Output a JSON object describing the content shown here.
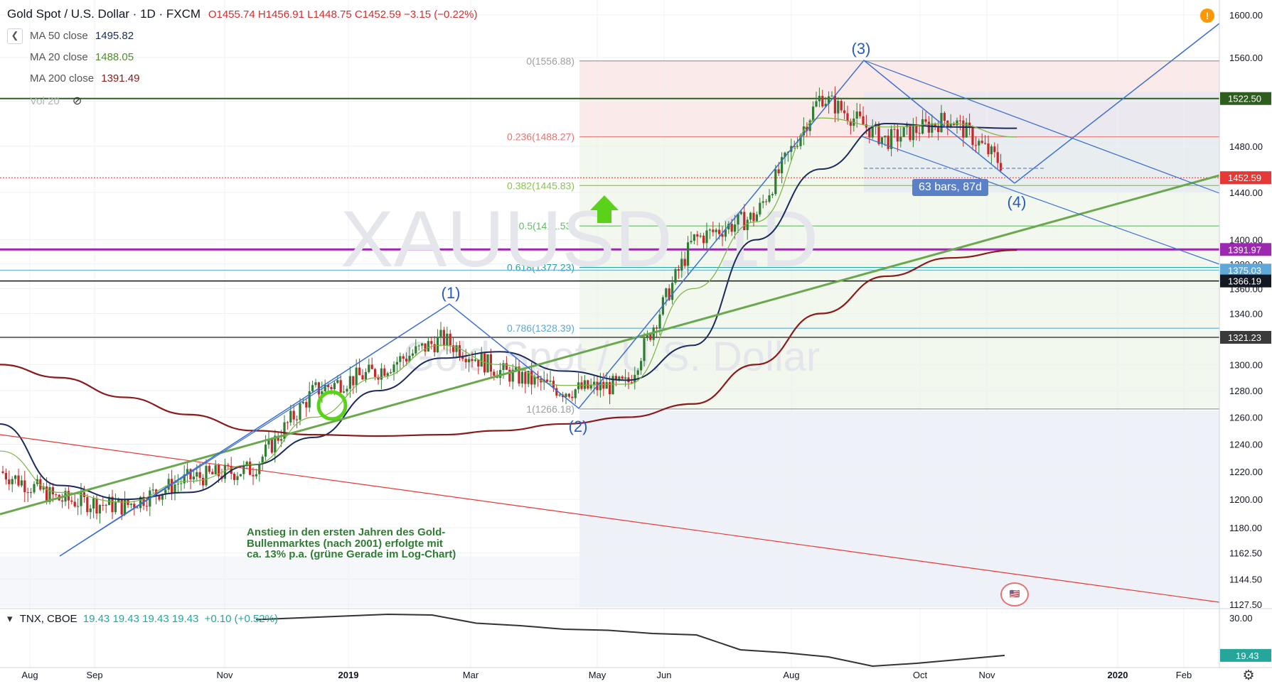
{
  "header": {
    "title": "Gold Spot / U.S. Dollar · 1D · FXCM",
    "open": "O1455.74",
    "high": "H1456.91",
    "low": "L1448.75",
    "close": "C1452.59",
    "change": "−3.15 (−0.22%)"
  },
  "legend": {
    "ma50_label": "MA 50 close",
    "ma50_value": "1495.82",
    "ma20_label": "MA 20 close",
    "ma20_value": "1488.05",
    "ma200_label": "MA 200 close",
    "ma200_value": "1391.49",
    "vol_label": "Vol 20"
  },
  "colors": {
    "ma50": "#1a2b5c",
    "ma20": "#7cb342",
    "ma200": "#8b1a1a",
    "up": "#2e7d32",
    "down": "#c62828",
    "trend_green": "#6aa84f",
    "channel_blue": "#3d6fd1",
    "fib_red": "#e57373",
    "purple": "#9c27b0"
  },
  "watermark": {
    "symbol": "XAUUSD, 1D",
    "name": "Gold Spot / U.S. Dollar"
  },
  "annotation_note": "Anstieg in den ersten Jahren des Gold-Bullenmarktes (nach 2001) erfolgte mit ca. 13% p.a. (grüne Gerade im Log-Chart)",
  "bars_badge": "63 bars, 87d",
  "icons": [
    "alert-icon",
    "settings-gear-icon",
    "flag-icon",
    "eye-hidden-icon",
    "collapse-icon"
  ],
  "tnx": {
    "label": "TNX, CBOE",
    "values": "19.43 19.43 19.43 19.43",
    "change": "+0.10 (+0.52%)",
    "last": "19.43",
    "axis": [
      "30.00"
    ]
  },
  "chart_data": [
    {
      "type": "line",
      "title": "Gold Spot / U.S. Dollar · 1D · FXCM",
      "xlabel": "",
      "ylabel": "",
      "log_scale": true,
      "ylim": [
        1127.5,
        1610
      ],
      "x_ticks": [
        "Aug",
        "Sep",
        "Nov",
        "2019",
        "Mar",
        "May",
        "Jun",
        "Aug",
        "Oct",
        "Nov",
        "2020",
        "Feb"
      ],
      "y_ticks": [
        "1600.00",
        "1560.00",
        "1520.00",
        "1480.00",
        "1440.00",
        "1400.00",
        "1380.00",
        "1360.00",
        "1340.00",
        "1320.00",
        "1300.00",
        "1280.00",
        "1260.00",
        "1240.00",
        "1220.00",
        "1200.00",
        "1180.00",
        "1162.50",
        "1144.50",
        "1127.50"
      ],
      "series": [
        {
          "name": "XAUUSD",
          "x": [
            "2018-07",
            "2018-08",
            "2018-09",
            "2018-10",
            "2018-11",
            "2018-12",
            "2019-01",
            "2019-02",
            "2019-03",
            "2019-04",
            "2019-05",
            "2019-06",
            "2019-07",
            "2019-08",
            "2019-09",
            "2019-10",
            "2019-11"
          ],
          "values": [
            1222,
            1200,
            1195,
            1215,
            1222,
            1280,
            1295,
            1320,
            1295,
            1280,
            1285,
            1400,
            1420,
            1525,
            1485,
            1505,
            1452.59
          ]
        },
        {
          "name": "MA 50 close",
          "values": [
            1255,
            1210,
            1200,
            1205,
            1225,
            1245,
            1280,
            1305,
            1310,
            1295,
            1288,
            1315,
            1400,
            1460,
            1500,
            1497,
            1495.82
          ]
        },
        {
          "name": "MA 20 close",
          "values": [
            1235,
            1205,
            1198,
            1213,
            1225,
            1260,
            1290,
            1315,
            1300,
            1284,
            1285,
            1360,
            1415,
            1505,
            1497,
            1500,
            1488.05
          ]
        },
        {
          "name": "MA 200 close",
          "values": [
            1300,
            1290,
            1275,
            1262,
            1250,
            1247,
            1246,
            1247,
            1250,
            1255,
            1260,
            1270,
            1300,
            1340,
            1370,
            1385,
            1391.49
          ]
        }
      ],
      "price_labels": [
        "1522.50",
        "1452.59",
        "1391.97",
        "1375.03",
        "1366.19",
        "1321.23"
      ],
      "fibonacci": [
        {
          "level": "0(1556.88)",
          "value": 1556.88
        },
        {
          "level": "0.236(1488.27)",
          "value": 1488.27
        },
        {
          "level": "0.382(1445.83)",
          "value": 1445.83
        },
        {
          "level": "0.5(1411.53)",
          "value": 1411.53
        },
        {
          "level": "0.618(1377.23)",
          "value": 1377.23
        },
        {
          "level": "0.786(1328.39)",
          "value": 1328.39
        },
        {
          "level": "1(1266.18)",
          "value": 1266.18
        }
      ],
      "wave_labels": [
        {
          "text": "(1)",
          "price": 1347
        },
        {
          "text": "(2)",
          "price": 1266
        },
        {
          "text": "(3)",
          "price": 1557
        },
        {
          "text": "(4)",
          "price": 1446
        }
      ]
    },
    {
      "type": "line",
      "title": "TNX, CBOE",
      "ylim": [
        16,
        32
      ],
      "y_ticks": [
        "30.00"
      ],
      "series": [
        {
          "name": "TNX",
          "values": [
            29.5,
            30.0,
            30.5,
            31.0,
            30.8,
            28.5,
            27.8,
            26.8,
            26.5,
            25.6,
            25.2,
            21.0,
            20.2,
            19.0,
            16.4,
            17.2,
            18.3,
            19.43
          ]
        }
      ]
    }
  ]
}
